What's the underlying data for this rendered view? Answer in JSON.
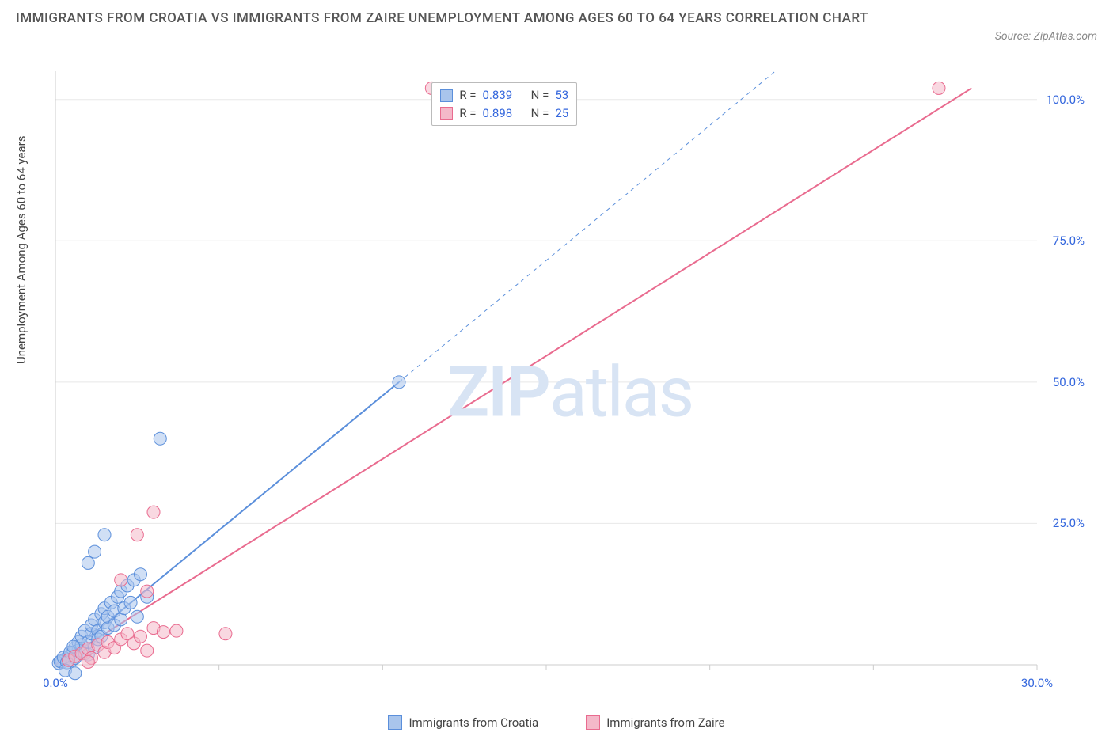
{
  "title": "IMMIGRANTS FROM CROATIA VS IMMIGRANTS FROM ZAIRE UNEMPLOYMENT AMONG AGES 60 TO 64 YEARS CORRELATION CHART",
  "source": "Source: ZipAtlas.com",
  "ylabel": "Unemployment Among Ages 60 to 64 years",
  "watermark_a": "ZIP",
  "watermark_b": "atlas",
  "chart": {
    "type": "scatter",
    "xlim": [
      0,
      30
    ],
    "ylim": [
      0,
      105
    ],
    "x_ticks": [
      0,
      5,
      10,
      15,
      20,
      25,
      30
    ],
    "x_tick_labels": {
      "0": "0.0%",
      "30": "30.0%"
    },
    "y_ticks": [
      25,
      50,
      75,
      100
    ],
    "y_tick_labels": {
      "25": "25.0%",
      "50": "50.0%",
      "75": "75.0%",
      "100": "100.0%"
    },
    "grid_color": "#e8e8e8",
    "axis_color": "#cccccc",
    "background_color": "#ffffff",
    "marker_radius": 8,
    "marker_opacity": 0.55,
    "line_width": 2,
    "dash_pattern": "5,5",
    "series": [
      {
        "name": "Immigrants from Croatia",
        "color": "#5b8fdb",
        "fill": "#a9c5ec",
        "R": "0.839",
        "N": "53",
        "trend_solid": {
          "x1": 0,
          "y1": 0,
          "x2": 10.5,
          "y2": 50
        },
        "trend_dash": {
          "x1": 10.5,
          "y1": 50,
          "x2": 22,
          "y2": 105
        },
        "points": [
          [
            0.2,
            0.5
          ],
          [
            0.3,
            1
          ],
          [
            0.4,
            1.5
          ],
          [
            0.5,
            2
          ],
          [
            0.5,
            0.8
          ],
          [
            0.6,
            3
          ],
          [
            0.6,
            1.2
          ],
          [
            0.7,
            4
          ],
          [
            0.7,
            2.5
          ],
          [
            0.8,
            3.5
          ],
          [
            0.8,
            5
          ],
          [
            0.9,
            2
          ],
          [
            0.9,
            6
          ],
          [
            1.0,
            4
          ],
          [
            1.0,
            1.8
          ],
          [
            1.1,
            5.5
          ],
          [
            1.1,
            7
          ],
          [
            1.2,
            3
          ],
          [
            1.2,
            8
          ],
          [
            1.3,
            6
          ],
          [
            1.3,
            4.5
          ],
          [
            1.4,
            9
          ],
          [
            1.4,
            5
          ],
          [
            1.5,
            7.5
          ],
          [
            1.5,
            10
          ],
          [
            1.6,
            6.5
          ],
          [
            1.6,
            8.5
          ],
          [
            1.7,
            11
          ],
          [
            1.8,
            9.5
          ],
          [
            1.8,
            7
          ],
          [
            1.9,
            12
          ],
          [
            2.0,
            8
          ],
          [
            2.0,
            13
          ],
          [
            2.1,
            10
          ],
          [
            2.2,
            14
          ],
          [
            2.3,
            11
          ],
          [
            2.4,
            15
          ],
          [
            2.5,
            8.5
          ],
          [
            2.6,
            16
          ],
          [
            2.8,
            12
          ],
          [
            1.0,
            18
          ],
          [
            1.2,
            20
          ],
          [
            1.5,
            23
          ],
          [
            3.2,
            40
          ],
          [
            10.5,
            50
          ],
          [
            0.1,
            0.3
          ],
          [
            0.15,
            0.6
          ],
          [
            0.25,
            1.3
          ],
          [
            0.35,
            0.4
          ],
          [
            0.45,
            2.2
          ],
          [
            0.55,
            3.2
          ],
          [
            0.3,
            -1
          ],
          [
            0.6,
            -1.5
          ]
        ]
      },
      {
        "name": "Immigrants from Zaire",
        "color": "#e96b8f",
        "fill": "#f4b8c9",
        "R": "0.898",
        "N": "25",
        "trend_solid": {
          "x1": 0,
          "y1": 0,
          "x2": 28,
          "y2": 102
        },
        "trend_dash": null,
        "points": [
          [
            0.4,
            0.8
          ],
          [
            0.6,
            1.5
          ],
          [
            0.8,
            2
          ],
          [
            1.0,
            2.8
          ],
          [
            1.1,
            1.2
          ],
          [
            1.3,
            3.5
          ],
          [
            1.5,
            2.2
          ],
          [
            1.6,
            4
          ],
          [
            1.8,
            3
          ],
          [
            2.0,
            4.5
          ],
          [
            2.2,
            5.5
          ],
          [
            2.4,
            3.8
          ],
          [
            2.6,
            5
          ],
          [
            2.8,
            2.5
          ],
          [
            3.0,
            6.5
          ],
          [
            3.3,
            5.8
          ],
          [
            3.7,
            6
          ],
          [
            5.2,
            5.5
          ],
          [
            2.0,
            15
          ],
          [
            2.5,
            23
          ],
          [
            3.0,
            27
          ],
          [
            2.8,
            13
          ],
          [
            11.5,
            102
          ],
          [
            27,
            102
          ],
          [
            1.0,
            0.5
          ]
        ]
      }
    ]
  },
  "legend": {
    "series1": "Immigrants from Croatia",
    "series2": "Immigrants from Zaire"
  },
  "rn_box": {
    "r_label": "R =",
    "n_label": "N ="
  }
}
